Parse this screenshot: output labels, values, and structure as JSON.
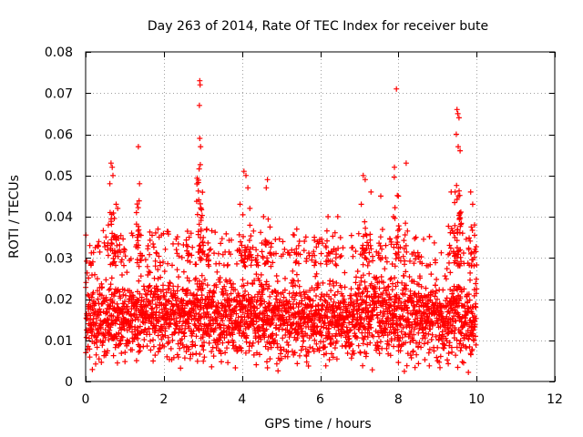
{
  "chart_data": {
    "type": "scatter",
    "title": "Day 263 of 2014, Rate Of TEC Index for receiver bute",
    "xlabel": "GPS time / hours",
    "ylabel": "ROTI / TECUs",
    "xlim": [
      0,
      12
    ],
    "ylim": [
      0,
      0.08
    ],
    "x_ticks": [
      0,
      2,
      4,
      6,
      8,
      10,
      12
    ],
    "y_ticks": [
      0,
      0.01,
      0.02,
      0.03,
      0.04,
      0.05,
      0.06,
      0.07,
      0.08
    ],
    "x_tick_labels": [
      "0",
      "2",
      "4",
      "6",
      "8",
      "10",
      "12"
    ],
    "y_tick_labels": [
      "0",
      "0.01",
      "0.02",
      "0.03",
      "0.04",
      "0.05",
      "0.06",
      "0.07",
      "0.08"
    ],
    "grid": true,
    "marker": "+",
    "color": "#ff0000",
    "data_range_x": [
      0,
      10
    ],
    "core_band_y": [
      0.005,
      0.028
    ],
    "series": [
      {
        "name": "ROTI",
        "notable_points": [
          {
            "x": 0.65,
            "y": 0.053
          },
          {
            "x": 0.68,
            "y": 0.052
          },
          {
            "x": 0.7,
            "y": 0.05
          },
          {
            "x": 0.62,
            "y": 0.048
          },
          {
            "x": 0.78,
            "y": 0.043
          },
          {
            "x": 0.82,
            "y": 0.042
          },
          {
            "x": 1.35,
            "y": 0.057
          },
          {
            "x": 1.38,
            "y": 0.048
          },
          {
            "x": 1.3,
            "y": 0.041
          },
          {
            "x": 1.85,
            "y": 0.037
          },
          {
            "x": 2.65,
            "y": 0.035
          },
          {
            "x": 2.92,
            "y": 0.073
          },
          {
            "x": 2.93,
            "y": 0.072
          },
          {
            "x": 2.91,
            "y": 0.067
          },
          {
            "x": 2.92,
            "y": 0.059
          },
          {
            "x": 2.94,
            "y": 0.057
          },
          {
            "x": 2.95,
            "y": 0.042
          },
          {
            "x": 3.1,
            "y": 0.037
          },
          {
            "x": 4.05,
            "y": 0.051
          },
          {
            "x": 4.1,
            "y": 0.05
          },
          {
            "x": 4.15,
            "y": 0.047
          },
          {
            "x": 3.95,
            "y": 0.043
          },
          {
            "x": 4.2,
            "y": 0.042
          },
          {
            "x": 4.65,
            "y": 0.049
          },
          {
            "x": 4.62,
            "y": 0.047
          },
          {
            "x": 4.55,
            "y": 0.04
          },
          {
            "x": 5.4,
            "y": 0.037
          },
          {
            "x": 5.85,
            "y": 0.035
          },
          {
            "x": 6.2,
            "y": 0.04
          },
          {
            "x": 6.45,
            "y": 0.04
          },
          {
            "x": 7.1,
            "y": 0.05
          },
          {
            "x": 7.15,
            "y": 0.049
          },
          {
            "x": 7.3,
            "y": 0.046
          },
          {
            "x": 7.05,
            "y": 0.043
          },
          {
            "x": 7.55,
            "y": 0.045
          },
          {
            "x": 7.95,
            "y": 0.071
          },
          {
            "x": 7.9,
            "y": 0.052
          },
          {
            "x": 8.0,
            "y": 0.045
          },
          {
            "x": 8.2,
            "y": 0.053
          },
          {
            "x": 8.45,
            "y": 0.035
          },
          {
            "x": 9.5,
            "y": 0.066
          },
          {
            "x": 9.52,
            "y": 0.065
          },
          {
            "x": 9.55,
            "y": 0.064
          },
          {
            "x": 9.48,
            "y": 0.06
          },
          {
            "x": 9.53,
            "y": 0.057
          },
          {
            "x": 9.58,
            "y": 0.056
          },
          {
            "x": 9.35,
            "y": 0.046
          },
          {
            "x": 9.45,
            "y": 0.046
          },
          {
            "x": 9.85,
            "y": 0.046
          },
          {
            "x": 9.9,
            "y": 0.043
          },
          {
            "x": 9.95,
            "y": 0.038
          }
        ]
      }
    ]
  }
}
